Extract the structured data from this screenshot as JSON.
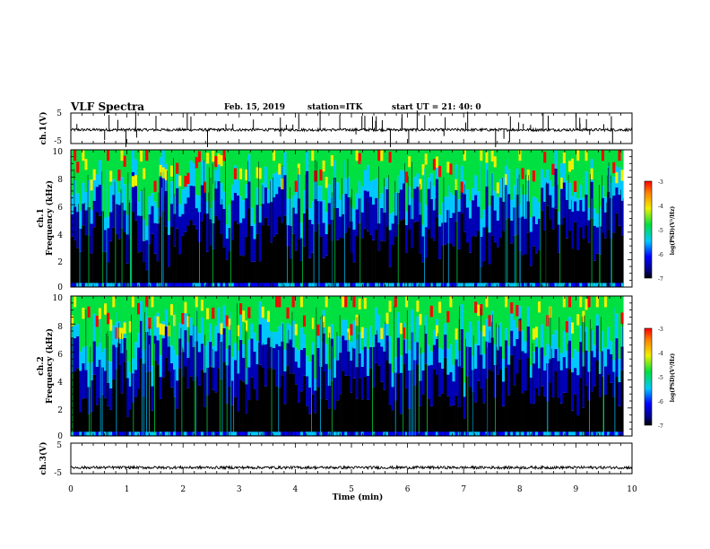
{
  "header": {
    "title": "VLF Spectra",
    "date": "Feb. 15, 2019",
    "station": "station=ITK",
    "start": "start UT = 21: 40: 0"
  },
  "chart_data": [
    {
      "type": "line",
      "name": "ch1-waveform",
      "ylabel": "ch.1(V)",
      "xlim": [
        0,
        10
      ],
      "ylim": [
        -5,
        5
      ],
      "yticks": [
        "5",
        "-5"
      ],
      "baseline": -0.5
    },
    {
      "type": "heatmap",
      "name": "ch1-spectrogram",
      "ylabel_line1": "ch.1",
      "ylabel_line2": "Frequency (kHz)",
      "xlim": [
        0,
        9.85
      ],
      "ylim": [
        0,
        10
      ],
      "yticks": [
        "0",
        "2",
        "4",
        "6",
        "8",
        "10"
      ],
      "colorbar": {
        "title": "log(PSD)(V²/Hz)",
        "range": [
          -7,
          -3
        ],
        "ticks": [
          "-3",
          "-4",
          "-5",
          "-6",
          "-7"
        ]
      }
    },
    {
      "type": "heatmap",
      "name": "ch2-spectrogram",
      "ylabel_line1": "ch.2",
      "ylabel_line2": "Frequency (kHz)",
      "xlim": [
        0,
        9.85
      ],
      "ylim": [
        0,
        10
      ],
      "yticks": [
        "0",
        "2",
        "4",
        "6",
        "8",
        "10"
      ],
      "colorbar": {
        "title": "log(PSD)(V²/Hz)",
        "range": [
          -7,
          -3
        ],
        "ticks": [
          "-3",
          "-4",
          "-5",
          "-6",
          "-7"
        ]
      }
    },
    {
      "type": "line",
      "name": "ch3-waveform",
      "ylabel": "ch.3(V)",
      "xlim": [
        0,
        10
      ],
      "ylim": [
        -5,
        5
      ],
      "yticks": [
        "5",
        "-5"
      ],
      "baseline": -3
    }
  ],
  "xaxis": {
    "label": "Time (min)",
    "ticks": [
      "0",
      "1",
      "2",
      "3",
      "4",
      "5",
      "6",
      "7",
      "8",
      "9",
      "10"
    ]
  },
  "colors": {
    "dark": "#000000",
    "blue": "#0000ff",
    "cyan": "#00c8ff",
    "green": "#00e040",
    "yellow": "#f0f000",
    "red": "#ff0000"
  }
}
